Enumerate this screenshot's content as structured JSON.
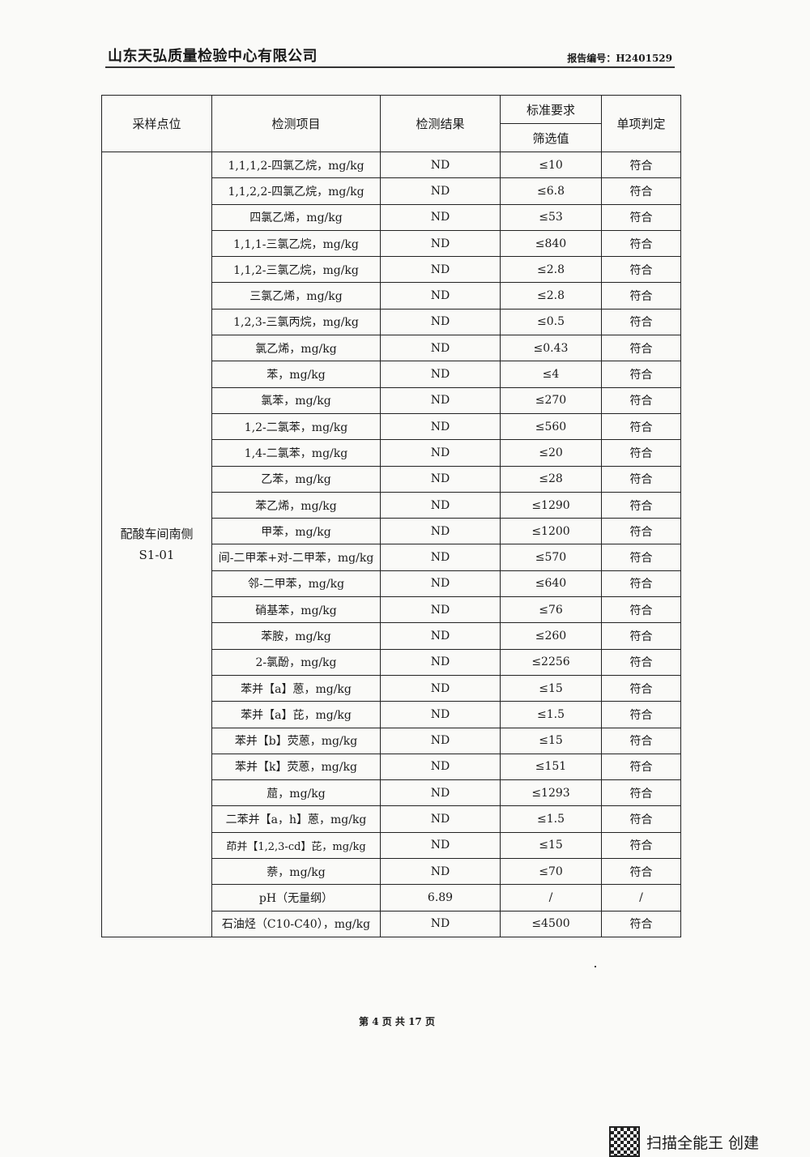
{
  "header": {
    "company": "山东天弘质量检验中心有限公司",
    "report_no": "报告编号：H2401529"
  },
  "table": {
    "headers": {
      "site": "采样点位",
      "item": "检测项目",
      "result": "检测结果",
      "standard": "标准要求",
      "screening": "筛选值",
      "judgement": "单项判定"
    },
    "site": "配酸车间南侧\nS1-01",
    "rows": [
      [
        "1,1,1,2-四氯乙烷，mg/kg",
        "ND",
        "≤10",
        "符合"
      ],
      [
        "1,1,2,2-四氯乙烷，mg/kg",
        "ND",
        "≤6.8",
        "符合"
      ],
      [
        "四氯乙烯，mg/kg",
        "ND",
        "≤53",
        "符合"
      ],
      [
        "1,1,1-三氯乙烷，mg/kg",
        "ND",
        "≤840",
        "符合"
      ],
      [
        "1,1,2-三氯乙烷，mg/kg",
        "ND",
        "≤2.8",
        "符合"
      ],
      [
        "三氯乙烯，mg/kg",
        "ND",
        "≤2.8",
        "符合"
      ],
      [
        "1,2,3-三氯丙烷，mg/kg",
        "ND",
        "≤0.5",
        "符合"
      ],
      [
        "氯乙烯，mg/kg",
        "ND",
        "≤0.43",
        "符合"
      ],
      [
        "苯，mg/kg",
        "ND",
        "≤4",
        "符合"
      ],
      [
        "氯苯，mg/kg",
        "ND",
        "≤270",
        "符合"
      ],
      [
        "1,2-二氯苯，mg/kg",
        "ND",
        "≤560",
        "符合"
      ],
      [
        "1,4-二氯苯，mg/kg",
        "ND",
        "≤20",
        "符合"
      ],
      [
        "乙苯，mg/kg",
        "ND",
        "≤28",
        "符合"
      ],
      [
        "苯乙烯，mg/kg",
        "ND",
        "≤1290",
        "符合"
      ],
      [
        "甲苯，mg/kg",
        "ND",
        "≤1200",
        "符合"
      ],
      [
        "间-二甲苯+对-二甲苯，mg/kg",
        "ND",
        "≤570",
        "符合"
      ],
      [
        "邻-二甲苯，mg/kg",
        "ND",
        "≤640",
        "符合"
      ],
      [
        "硝基苯，mg/kg",
        "ND",
        "≤76",
        "符合"
      ],
      [
        "苯胺，mg/kg",
        "ND",
        "≤260",
        "符合"
      ],
      [
        "2-氯酚，mg/kg",
        "ND",
        "≤2256",
        "符合"
      ],
      [
        "苯并【a】蒽，mg/kg",
        "ND",
        "≤15",
        "符合"
      ],
      [
        "苯并【a】芘，mg/kg",
        "ND",
        "≤1.5",
        "符合"
      ],
      [
        "苯并【b】荧蒽，mg/kg",
        "ND",
        "≤15",
        "符合"
      ],
      [
        "苯并【k】荧蒽，mg/kg",
        "ND",
        "≤151",
        "符合"
      ],
      [
        "䓛，mg/kg",
        "ND",
        "≤1293",
        "符合"
      ],
      [
        "二苯并【a，h】蒽，mg/kg",
        "ND",
        "≤1.5",
        "符合"
      ],
      [
        "茚并【1,2,3-cd】芘，mg/kg",
        "ND",
        "≤15",
        "符合"
      ],
      [
        "萘，mg/kg",
        "ND",
        "≤70",
        "符合"
      ],
      [
        "pH（无量纲）",
        "6.89",
        "/",
        "/"
      ],
      [
        "石油烃（C10-C40），mg/kg",
        "ND",
        "≤4500",
        "符合"
      ]
    ]
  },
  "footer": {
    "page": "第 4 页 共 17 页"
  },
  "watermark": {
    "text": "扫描全能王  创建"
  }
}
